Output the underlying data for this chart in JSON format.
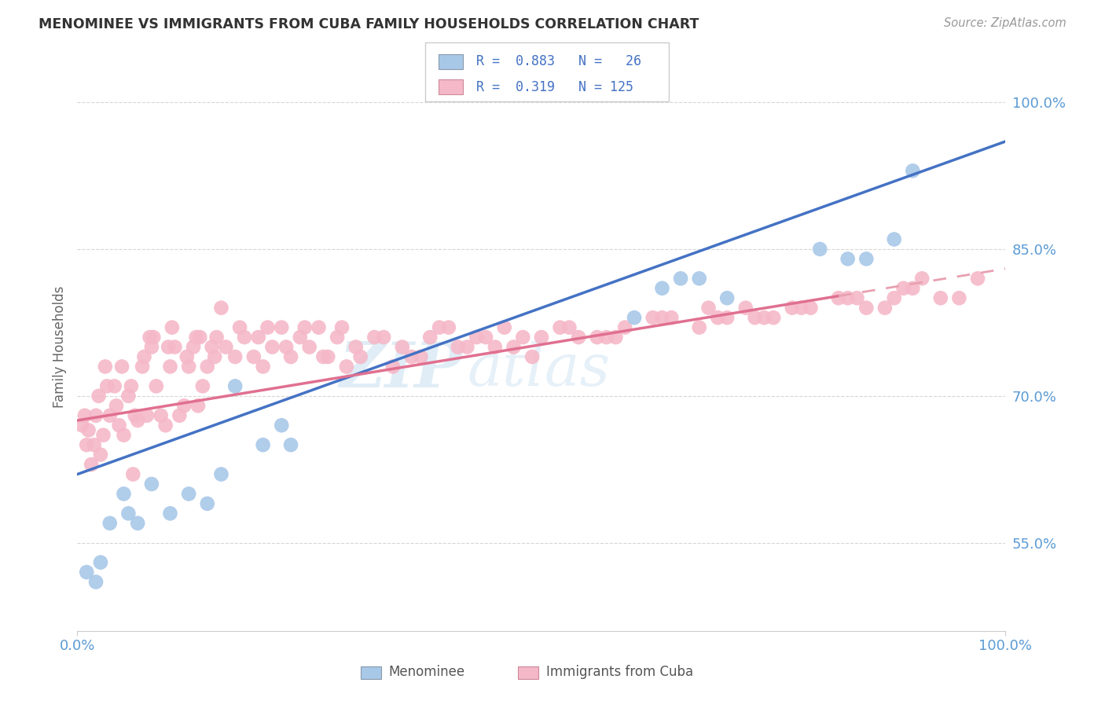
{
  "title": "MENOMINEE VS IMMIGRANTS FROM CUBA FAMILY HOUSEHOLDS CORRELATION CHART",
  "source": "Source: ZipAtlas.com",
  "ylabel": "Family Households",
  "ytick_values": [
    55.0,
    70.0,
    85.0,
    100.0
  ],
  "ytick_labels": [
    "55.0%",
    "70.0%",
    "85.0%",
    "100.0%"
  ],
  "xmin": 0.0,
  "xmax": 100.0,
  "ymin": 46.0,
  "ymax": 104.0,
  "blue_color": "#a8c8e8",
  "pink_color": "#f5b8c8",
  "blue_line_color": "#4472c4",
  "pink_line_color": "#e07090",
  "pink_dash_color": "#e8a0b0",
  "watermark_color": "#c8dff0",
  "blue_x": [
    1.0,
    2.0,
    3.5,
    5.0,
    6.5,
    8.0,
    10.0,
    12.0,
    14.0,
    15.5,
    17.0,
    20.0,
    23.0,
    60.0,
    63.0,
    65.0,
    67.0,
    70.0,
    80.0,
    83.0,
    85.0,
    88.0,
    2.5,
    5.5,
    22.0,
    90.0
  ],
  "blue_y": [
    52.0,
    51.0,
    57.0,
    60.0,
    57.0,
    61.0,
    58.0,
    60.0,
    59.0,
    62.0,
    71.0,
    65.0,
    65.0,
    78.0,
    81.0,
    82.0,
    82.0,
    80.0,
    85.0,
    84.0,
    84.0,
    86.0,
    53.0,
    58.0,
    67.0,
    93.0
  ],
  "cuba_x": [
    0.5,
    0.8,
    1.0,
    1.2,
    1.5,
    2.0,
    2.3,
    2.8,
    3.0,
    3.5,
    4.0,
    4.5,
    5.0,
    5.5,
    6.0,
    6.5,
    7.0,
    7.5,
    8.0,
    8.5,
    9.0,
    9.5,
    10.0,
    10.5,
    11.0,
    11.5,
    12.0,
    12.5,
    13.0,
    13.5,
    14.0,
    14.5,
    15.0,
    16.0,
    17.0,
    18.0,
    19.0,
    20.0,
    21.0,
    22.0,
    23.0,
    24.0,
    25.0,
    26.0,
    27.0,
    28.0,
    29.0,
    30.0,
    32.0,
    35.0,
    38.0,
    40.0,
    42.0,
    44.0,
    46.0,
    48.0,
    50.0,
    53.0,
    56.0,
    59.0,
    63.0,
    67.0,
    70.0,
    72.0,
    75.0,
    78.0,
    82.0,
    85.0,
    88.0,
    90.0,
    4.2,
    5.8,
    7.2,
    9.8,
    12.8,
    14.8,
    17.5,
    19.5,
    2.5,
    3.2,
    4.8,
    6.2,
    7.8,
    10.2,
    11.8,
    13.2,
    15.5,
    1.8,
    8.2,
    20.5,
    22.5,
    24.5,
    26.5,
    28.5,
    33.0,
    36.0,
    39.0,
    43.0,
    47.0,
    52.0,
    57.0,
    62.0,
    68.0,
    73.0,
    77.0,
    83.0,
    87.0,
    91.0,
    95.0,
    30.5,
    34.0,
    37.0,
    41.0,
    45.0,
    49.0,
    54.0,
    58.0,
    64.0,
    69.0,
    74.0,
    79.0,
    84.0,
    89.0,
    93.0,
    97.0
  ],
  "cuba_y": [
    67.0,
    68.0,
    65.0,
    66.5,
    63.0,
    68.0,
    70.0,
    66.0,
    73.0,
    68.0,
    71.0,
    67.0,
    66.0,
    70.0,
    62.0,
    67.5,
    73.0,
    68.0,
    75.0,
    71.0,
    68.0,
    67.0,
    73.0,
    75.0,
    68.0,
    69.0,
    73.0,
    75.0,
    69.0,
    71.0,
    73.0,
    75.0,
    76.0,
    75.0,
    74.0,
    76.0,
    74.0,
    73.0,
    75.0,
    77.0,
    74.0,
    76.0,
    75.0,
    77.0,
    74.0,
    76.0,
    73.0,
    75.0,
    76.0,
    75.0,
    76.0,
    77.0,
    75.0,
    76.0,
    77.0,
    76.0,
    76.0,
    77.0,
    76.0,
    77.0,
    78.0,
    77.0,
    78.0,
    79.0,
    78.0,
    79.0,
    80.0,
    79.0,
    80.0,
    81.0,
    69.0,
    71.0,
    74.0,
    75.0,
    76.0,
    74.0,
    77.0,
    76.0,
    64.0,
    71.0,
    73.0,
    68.0,
    76.0,
    77.0,
    74.0,
    76.0,
    79.0,
    65.0,
    76.0,
    77.0,
    75.0,
    77.0,
    74.0,
    77.0,
    76.0,
    74.0,
    77.0,
    76.0,
    75.0,
    77.0,
    76.0,
    78.0,
    79.0,
    78.0,
    79.0,
    80.0,
    79.0,
    82.0,
    80.0,
    74.0,
    73.0,
    74.0,
    75.0,
    75.0,
    74.0,
    76.0,
    76.0,
    78.0,
    78.0,
    78.0,
    79.0,
    80.0,
    81.0,
    80.0,
    82.0
  ],
  "blue_line_x0": 0.0,
  "blue_line_y0": 62.0,
  "blue_line_x1": 100.0,
  "blue_line_y1": 96.0,
  "pink_line_x0": 0.0,
  "pink_line_y0": 67.5,
  "pink_line_x1": 100.0,
  "pink_line_y1": 83.0,
  "pink_solid_end": 82.0,
  "grid_color": "#cccccc",
  "spine_color": "#cccccc"
}
